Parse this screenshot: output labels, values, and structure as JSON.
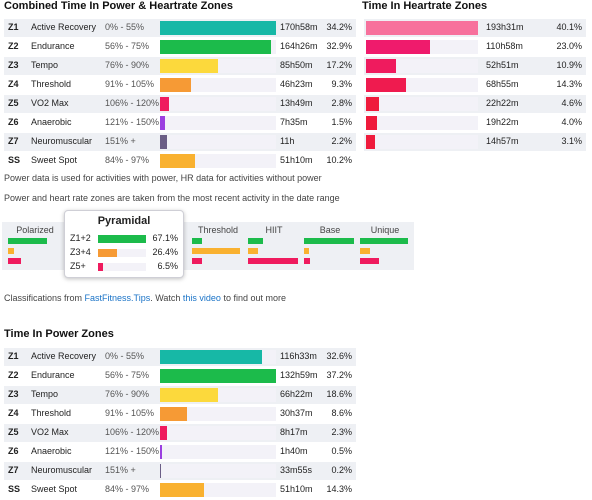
{
  "combined": {
    "title": "Combined Time In Power & Heartrate Zones",
    "rows": [
      {
        "zone": "Z1",
        "name": "Active Recovery",
        "range": "0% - 55%",
        "fraction": 1.0,
        "time": "170h58m",
        "pct": "34.2%",
        "color": "#17b8a6"
      },
      {
        "zone": "Z2",
        "name": "Endurance",
        "range": "56% - 75%",
        "fraction": 0.96,
        "time": "164h26m",
        "pct": "32.9%",
        "color": "#1cbb4b"
      },
      {
        "zone": "Z3",
        "name": "Tempo",
        "range": "76% - 90%",
        "fraction": 0.5,
        "time": "85h50m",
        "pct": "17.2%",
        "color": "#fcd93c"
      },
      {
        "zone": "Z4",
        "name": "Threshold",
        "range": "91% - 105%",
        "fraction": 0.27,
        "time": "46h23m",
        "pct": "9.3%",
        "color": "#f69a35"
      },
      {
        "zone": "Z5",
        "name": "VO2 Max",
        "range": "106% - 120%",
        "fraction": 0.08,
        "time": "13h49m",
        "pct": "2.8%",
        "color": "#ef1b5e"
      },
      {
        "zone": "Z6",
        "name": "Anaerobic",
        "range": "121% - 150%",
        "fraction": 0.045,
        "time": "7h35m",
        "pct": "1.5%",
        "color": "#9b3fe0"
      },
      {
        "zone": "Z7",
        "name": "Neuromuscular",
        "range": "151% +",
        "fraction": 0.064,
        "time": "11h",
        "pct": "2.2%",
        "color": "#6b5e86"
      },
      {
        "zone": "SS",
        "name": "Sweet Spot",
        "range": "84% - 97%",
        "fraction": 0.3,
        "time": "51h10m",
        "pct": "10.2%",
        "color": "#f9b130"
      }
    ]
  },
  "heartrate": {
    "title": "Time In Heartrate Zones",
    "rows": [
      {
        "zone": "Z1",
        "fraction": 1.0,
        "time": "193h31m",
        "pct": "40.1%",
        "color": "#f7719c"
      },
      {
        "zone": "Z2",
        "fraction": 0.57,
        "time": "110h58m",
        "pct": "23.0%",
        "color": "#ef1b6c"
      },
      {
        "zone": "Z3",
        "fraction": 0.27,
        "time": "52h51m",
        "pct": "10.9%",
        "color": "#ef1b5e"
      },
      {
        "zone": "Z4",
        "fraction": 0.36,
        "time": "68h55m",
        "pct": "14.3%",
        "color": "#ef1b4f"
      },
      {
        "zone": "Z5",
        "fraction": 0.12,
        "time": "22h22m",
        "pct": "4.6%",
        "color": "#ef1b3c"
      },
      {
        "zone": "Z6",
        "fraction": 0.1,
        "time": "19h22m",
        "pct": "4.0%",
        "color": "#ef1b3c"
      },
      {
        "zone": "Z7",
        "fraction": 0.08,
        "time": "14h57m",
        "pct": "3.1%",
        "color": "#ef1b3c"
      }
    ]
  },
  "notes": {
    "power_note": "Power data is used for activities with power, HR data for activities without power",
    "zones_note": "Power and heart rate zones are taken from the most recent activity in the date range"
  },
  "classifications": {
    "columns": [
      {
        "label": "Polarized",
        "bars": [
          {
            "color": "#1cbb4b",
            "fraction": 0.75
          },
          {
            "color": "#f9b130",
            "fraction": 0.12
          },
          {
            "color": "#ef1b5e",
            "fraction": 0.25
          }
        ]
      },
      {
        "label": "Threshold",
        "bars": [
          {
            "color": "#1cbb4b",
            "fraction": 0.2
          },
          {
            "color": "#f9b130",
            "fraction": 0.95
          },
          {
            "color": "#ef1b5e",
            "fraction": 0.2
          }
        ]
      },
      {
        "label": "HIIT",
        "bars": [
          {
            "color": "#1cbb4b",
            "fraction": 0.3
          },
          {
            "color": "#f9b130",
            "fraction": 0.2
          },
          {
            "color": "#ef1b5e",
            "fraction": 1.0
          }
        ]
      },
      {
        "label": "Base",
        "bars": [
          {
            "color": "#1cbb4b",
            "fraction": 1.0
          },
          {
            "color": "#f9b130",
            "fraction": 0.1
          },
          {
            "color": "#ef1b5e",
            "fraction": 0.12
          }
        ]
      },
      {
        "label": "Unique",
        "bars": [
          {
            "color": "#1cbb4b",
            "fraction": 1.0
          },
          {
            "color": "#f9b130",
            "fraction": 0.2
          },
          {
            "color": "#ef1b5e",
            "fraction": 0.4
          }
        ]
      }
    ],
    "highlight": {
      "title": "Pyramidal",
      "rows": [
        {
          "label": "Z1+2",
          "fraction": 1.0,
          "value": "67.1%",
          "color": "#1cbb4b"
        },
        {
          "label": "Z3+4",
          "fraction": 0.4,
          "value": "26.4%",
          "color": "#f69a35"
        },
        {
          "label": "Z5+",
          "fraction": 0.1,
          "value": "6.5%",
          "color": "#ef1b5e"
        }
      ]
    }
  },
  "footer": {
    "prefix": "Classifications from ",
    "site_link": "FastFitness.Tips",
    "middle": ". Watch ",
    "video_link": "this video",
    "suffix": " to find out more"
  },
  "power": {
    "title": "Time In Power Zones",
    "rows": [
      {
        "zone": "Z1",
        "name": "Active Recovery",
        "range": "0% - 55%",
        "fraction": 0.88,
        "time": "116h33m",
        "pct": "32.6%",
        "color": "#17b8a6"
      },
      {
        "zone": "Z2",
        "name": "Endurance",
        "range": "56% - 75%",
        "fraction": 1.0,
        "time": "132h59m",
        "pct": "37.2%",
        "color": "#1cbb4b"
      },
      {
        "zone": "Z3",
        "name": "Tempo",
        "range": "76% - 90%",
        "fraction": 0.5,
        "time": "66h22m",
        "pct": "18.6%",
        "color": "#fcd93c"
      },
      {
        "zone": "Z4",
        "name": "Threshold",
        "range": "91% - 105%",
        "fraction": 0.23,
        "time": "30h37m",
        "pct": "8.6%",
        "color": "#f69a35"
      },
      {
        "zone": "Z5",
        "name": "VO2 Max",
        "range": "106% - 120%",
        "fraction": 0.06,
        "time": "8h17m",
        "pct": "2.3%",
        "color": "#ef1b5e"
      },
      {
        "zone": "Z6",
        "name": "Anaerobic",
        "range": "121% - 150%",
        "fraction": 0.013,
        "time": "1h40m",
        "pct": "0.5%",
        "color": "#9b3fe0"
      },
      {
        "zone": "Z7",
        "name": "Neuromuscular",
        "range": "151% +",
        "fraction": 0.006,
        "time": "33m55s",
        "pct": "0.2%",
        "color": "#6b5e86"
      },
      {
        "zone": "SS",
        "name": "Sweet Spot",
        "range": "84% - 97%",
        "fraction": 0.38,
        "time": "51h10m",
        "pct": "14.3%",
        "color": "#f9b130"
      }
    ]
  }
}
